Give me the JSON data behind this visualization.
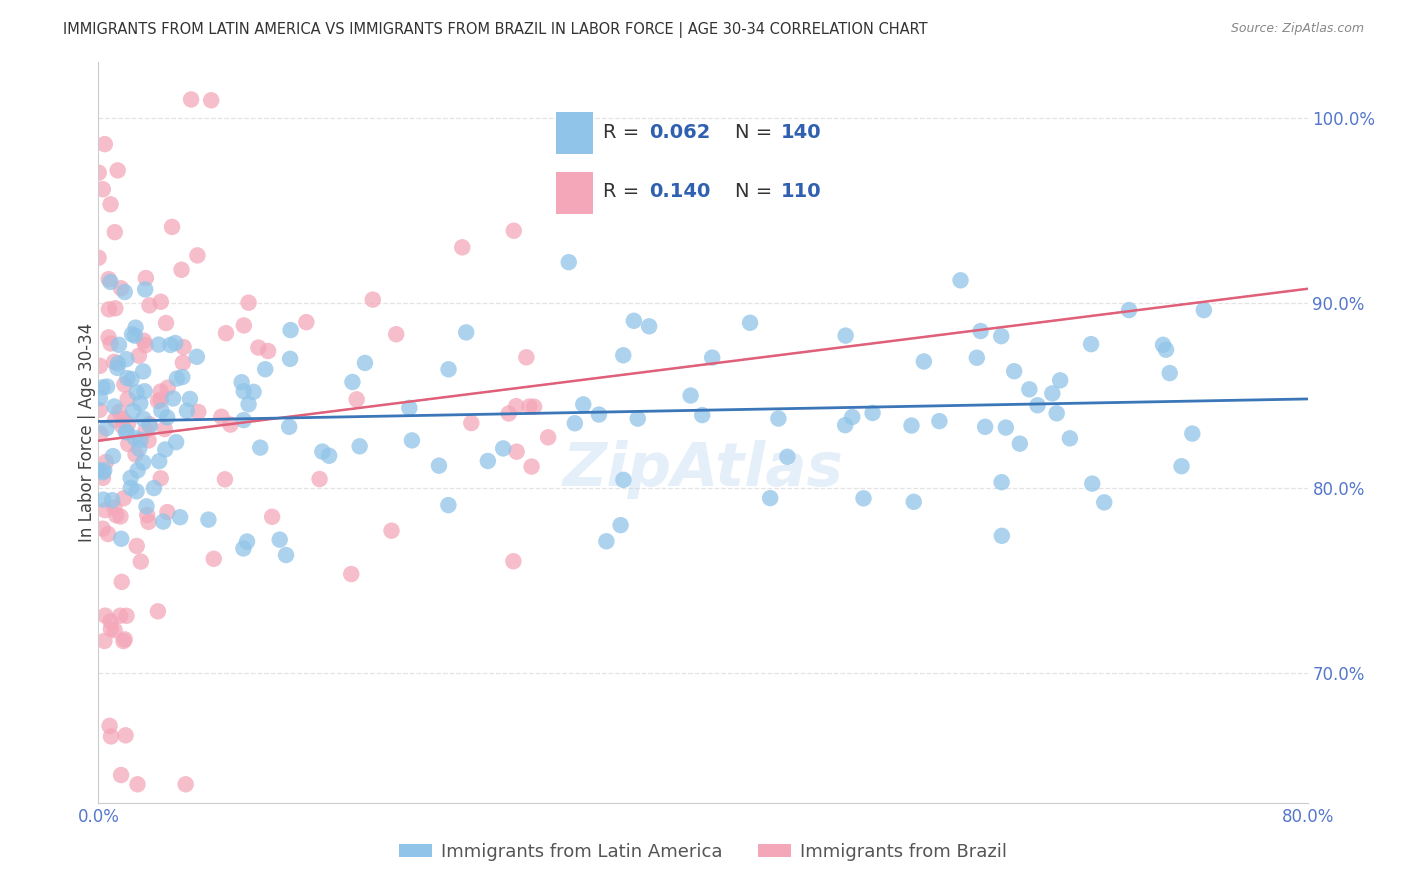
{
  "title": "IMMIGRANTS FROM LATIN AMERICA VS IMMIGRANTS FROM BRAZIL IN LABOR FORCE | AGE 30-34 CORRELATION CHART",
  "source": "Source: ZipAtlas.com",
  "ylabel": "In Labor Force | Age 30-34",
  "xlim": [
    0.0,
    0.8
  ],
  "ylim": [
    0.63,
    1.03
  ],
  "x_ticks": [
    0.0,
    0.1,
    0.2,
    0.3,
    0.4,
    0.5,
    0.6,
    0.7,
    0.8
  ],
  "x_tick_labels": [
    "0.0%",
    "",
    "",
    "",
    "",
    "",
    "",
    "",
    "80.0%"
  ],
  "y_ticks": [
    0.7,
    0.8,
    0.9,
    1.0
  ],
  "y_tick_labels": [
    "70.0%",
    "80.0%",
    "90.0%",
    "100.0%"
  ],
  "legend_labels": [
    "Immigrants from Latin America",
    "Immigrants from Brazil"
  ],
  "blue_color": "#90c4e8",
  "pink_color": "#f4a7b9",
  "blue_line_color": "#3a76b8",
  "pink_line_color": "#e0607a",
  "R_blue": 0.062,
  "N_blue": 140,
  "R_pink": 0.14,
  "N_pink": 110,
  "legend_text_color": "#3060b0",
  "legend_R_N_color": "#3060b0",
  "watermark": "ZipAtlas",
  "bg_color": "#ffffff",
  "grid_color": "#dddddd",
  "tick_color": "#5577cc"
}
